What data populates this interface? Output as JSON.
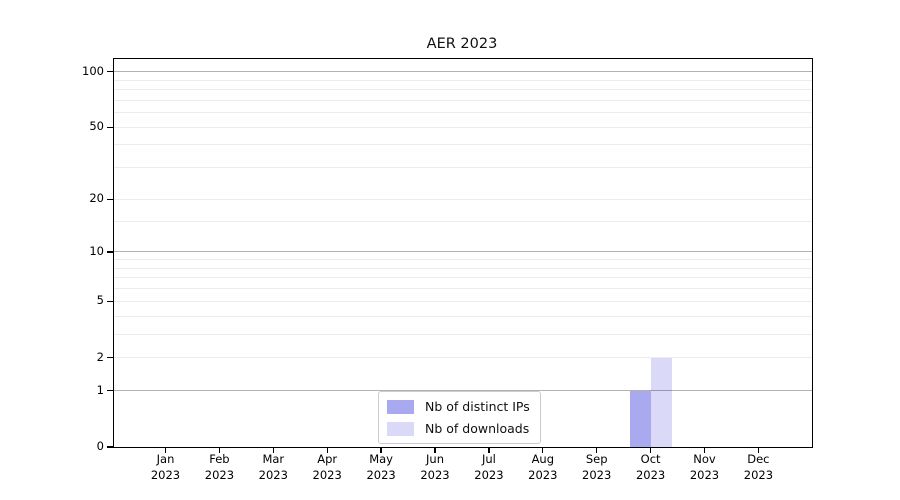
{
  "chart_data": {
    "type": "bar",
    "title": "AER 2023",
    "xlabel": "",
    "ylabel": "",
    "year": "2023",
    "months": [
      "Jan",
      "Feb",
      "Mar",
      "Apr",
      "May",
      "Jun",
      "Jul",
      "Aug",
      "Sep",
      "Oct",
      "Nov",
      "Dec"
    ],
    "categories": [
      "Jan 2023",
      "Feb 2023",
      "Mar 2023",
      "Apr 2023",
      "May 2023",
      "Jun 2023",
      "Jul 2023",
      "Aug 2023",
      "Sep 2023",
      "Oct 2023",
      "Nov 2023",
      "Dec 2023"
    ],
    "series": [
      {
        "name": "Nb of distinct IPs",
        "color": "#a9a9f0",
        "values": [
          0,
          0,
          0,
          0,
          0,
          0,
          0,
          0,
          0,
          1,
          0,
          0
        ]
      },
      {
        "name": "Nb of downloads",
        "color": "#dadaf8",
        "values": [
          0,
          0,
          0,
          0,
          0,
          0,
          0,
          0,
          0,
          2,
          0,
          0
        ]
      }
    ],
    "y_scale": "log10(1+v)",
    "y_ticks": [
      0,
      1,
      2,
      5,
      10,
      20,
      50,
      100
    ],
    "y_major_gridlines": [
      1,
      10,
      100
    ],
    "y_minor_gridlines": [
      2,
      3,
      4,
      5,
      6,
      7,
      8,
      9,
      15,
      20,
      30,
      40,
      50,
      60,
      70,
      80,
      90
    ],
    "ylim": [
      0,
      117
    ],
    "grid": true,
    "legend_position": "lower center",
    "axis_color": "#000000",
    "background_color": "#ffffff"
  }
}
